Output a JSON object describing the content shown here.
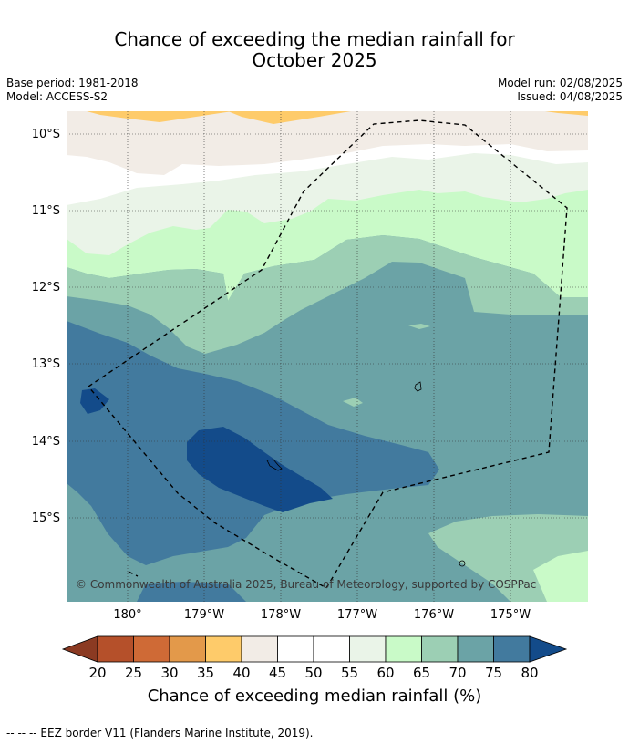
{
  "header": {
    "title_line1": "Chance of exceeding the median rainfall for",
    "title_line2": "October 2025",
    "base_period": "Base period: 1981-2018",
    "model": "Model: ACCESS-S2",
    "model_run": "Model run: 02/08/2025",
    "issued": "Issued: 04/08/2025"
  },
  "map": {
    "lat_labels": [
      "10°S",
      "11°S",
      "12°S",
      "13°S",
      "14°S",
      "15°S"
    ],
    "lon_labels": [
      "180°",
      "179°W",
      "178°W",
      "177°W",
      "176°W",
      "175°W"
    ],
    "copyright": "© Commonwealth of Australia 2025, Bureau of Meteorology, supported by COSPPac"
  },
  "colorbar": {
    "ticks": [
      "20",
      "25",
      "30",
      "35",
      "40",
      "45",
      "50",
      "55",
      "60",
      "65",
      "70",
      "75",
      "80"
    ],
    "colors": [
      "#8b3a22",
      "#b5502a",
      "#cf6a36",
      "#e3994a",
      "#fecb6a",
      "#f2ece6",
      "#ffffff",
      "#ffffff",
      "#eaf4e8",
      "#c9fac8",
      "#9ccfb4",
      "#6ba3a6",
      "#427a9e",
      "#134b8a"
    ],
    "label": "Chance of exceeding median rainfall (%)"
  },
  "footer": {
    "eez_note": "--  --  -- EEZ border V11 (Flanders Marine Institute, 2019)."
  }
}
